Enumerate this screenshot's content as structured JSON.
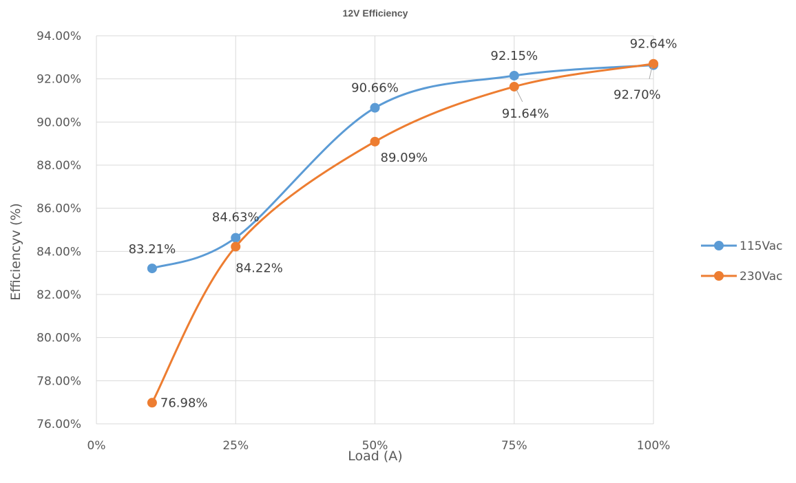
{
  "chart_data": {
    "type": "line",
    "title": "12V Efficiency",
    "xlabel": "Load (A)",
    "ylabel": "Efficiencyv (%)",
    "x_ticks": [
      "0%",
      "25%",
      "50%",
      "75%",
      "100%"
    ],
    "y_ticks": [
      "76.00%",
      "78.00%",
      "80.00%",
      "82.00%",
      "84.00%",
      "86.00%",
      "88.00%",
      "90.00%",
      "92.00%",
      "94.00%"
    ],
    "xlim": [
      0,
      100
    ],
    "ylim": [
      76,
      94
    ],
    "grid": true,
    "legend_position": "right",
    "series": [
      {
        "name": "115Vac",
        "color": "#5b9bd5",
        "x": [
          10,
          25,
          50,
          75,
          100
        ],
        "y": [
          83.21,
          84.63,
          90.66,
          92.15,
          92.64
        ],
        "labels": [
          "83.21%",
          "84.63%",
          "90.66%",
          "92.15%",
          "92.64%"
        ]
      },
      {
        "name": "230Vac",
        "color": "#ed7d31",
        "x": [
          10,
          25,
          50,
          75,
          100
        ],
        "y": [
          76.98,
          84.22,
          89.09,
          91.64,
          92.7
        ],
        "labels": [
          "76.98%",
          "84.22%",
          "89.09%",
          "91.64%",
          "92.70%"
        ]
      }
    ]
  }
}
